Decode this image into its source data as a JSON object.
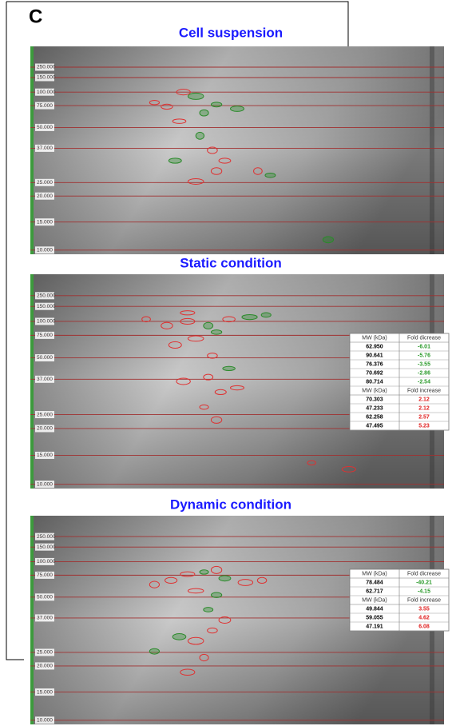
{
  "panel_label": "C",
  "panels": [
    {
      "title": "Cell suspension",
      "ladder": [
        "250.000",
        "150.000",
        "100.000",
        "75.000",
        "50.000",
        "37.000",
        "25.000",
        "20.000",
        "15.000",
        "10.000"
      ]
    },
    {
      "title": "Static condition",
      "ladder": [
        "250.000",
        "150.000",
        "100.000",
        "75.000",
        "50.000",
        "37.000",
        "25.000",
        "20.000",
        "15.000",
        "10.000"
      ],
      "table": {
        "decrease": {
          "header": [
            "MW (kDa)",
            "Fold dicrease"
          ],
          "rows": [
            [
              "62.950",
              "-6.01"
            ],
            [
              "90.641",
              "-5.76"
            ],
            [
              "76.376",
              "-3.55"
            ],
            [
              "70.692",
              "-2.86"
            ],
            [
              "80.714",
              "-2.54"
            ]
          ]
        },
        "increase": {
          "header": [
            "MW (kDa)",
            "Fold increase"
          ],
          "rows": [
            [
              "70.303",
              "2.12"
            ],
            [
              "47.233",
              "2.12"
            ],
            [
              "62.258",
              "2.57"
            ],
            [
              "47.495",
              "5.23"
            ]
          ]
        }
      }
    },
    {
      "title": "Dynamic condition",
      "ladder": [
        "250.000",
        "150.000",
        "100.000",
        "75.000",
        "50.000",
        "37.000",
        "25.000",
        "20.000",
        "15.000",
        "10.000"
      ],
      "table": {
        "decrease": {
          "header": [
            "MW (kDa)",
            "Fold dicrease"
          ],
          "rows": [
            [
              "78.484",
              "-40.21"
            ],
            [
              "62.717",
              "-4.15"
            ]
          ]
        },
        "increase": {
          "header": [
            "MW (kDa)",
            "Fold increase"
          ],
          "rows": [
            [
              "49.844",
              "3.55"
            ],
            [
              "59.055",
              "4.62"
            ],
            [
              "47.191",
              "6.08"
            ]
          ]
        }
      }
    }
  ]
}
